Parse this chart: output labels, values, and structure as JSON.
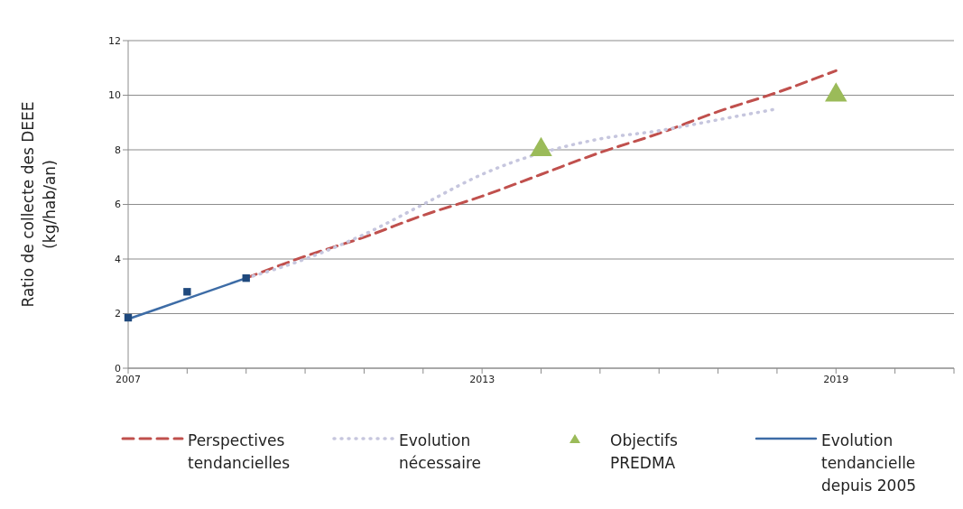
{
  "chart_data": {
    "type": "line",
    "ylabel": "Ratio de  collecte des DEEE\n(kg/hab/an)",
    "categories": [
      "2007",
      null,
      null,
      null,
      null,
      null,
      "2013",
      null,
      null,
      null,
      null,
      null,
      "2019",
      null,
      null
    ],
    "ylim": [
      0,
      12
    ],
    "yticks": [
      0,
      2,
      4,
      6,
      8,
      10,
      12
    ],
    "grid": "y",
    "legend": "bottom",
    "series": [
      {
        "name": "Perspectives tendancielles",
        "type": "line",
        "line_style": "dashed",
        "marker": "none",
        "color": "#c0504d",
        "values": [
          null,
          null,
          3.3,
          4.1,
          4.8,
          5.6,
          6.3,
          7.1,
          7.9,
          8.6,
          9.4,
          10.1,
          10.9,
          null,
          null
        ]
      },
      {
        "name": "Evolution nécessaire",
        "type": "line",
        "line_style": "dotted",
        "marker": "none",
        "color": "#c6c6de",
        "values": [
          null,
          null,
          3.3,
          4.0,
          4.9,
          6.0,
          7.1,
          null,
          8.4,
          8.7,
          9.1,
          9.5,
          null,
          null,
          null
        ]
      },
      {
        "name": "Objectifs PREDMA",
        "type": "scatter",
        "marker": "triangle",
        "color": "#9bbb59",
        "values": [
          null,
          null,
          null,
          null,
          null,
          null,
          null,
          8,
          null,
          null,
          null,
          null,
          10,
          null,
          null
        ]
      },
      {
        "name": "Evolution tendancielle depuis 2005",
        "type": "line",
        "line_style": "solid",
        "marker": "none",
        "color": "#3d6ca6",
        "values": [
          1.8,
          2.55,
          3.3,
          null,
          null,
          null,
          null,
          null,
          null,
          null,
          null,
          null,
          null,
          null,
          null
        ]
      },
      {
        "type": "scatter",
        "marker": "square",
        "color": "#1f497d",
        "values": [
          1.85,
          2.8,
          3.3,
          null,
          null,
          null,
          null,
          null,
          null,
          null,
          null,
          null,
          null,
          null,
          null
        ]
      }
    ]
  }
}
